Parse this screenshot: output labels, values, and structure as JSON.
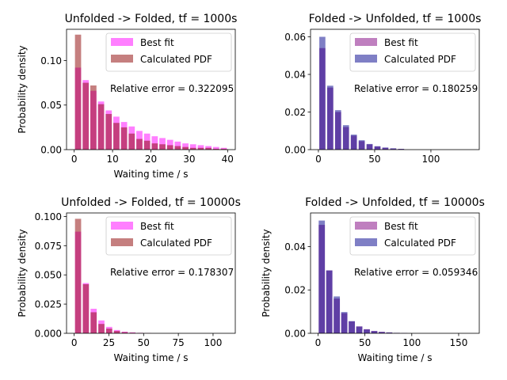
{
  "chart_data": [
    {
      "type": "bar",
      "title": "Unfolded -> Folded, tf = 1000s",
      "xlabel": "Waiting time / s",
      "ylabel": "Probability density",
      "xlim": [
        -2,
        42
      ],
      "ylim": [
        0,
        0.135
      ],
      "xticks": [
        0,
        10,
        20,
        30,
        40
      ],
      "xtick_labels": [
        "0",
        "10",
        "20",
        "30",
        "40"
      ],
      "yticks": [
        0,
        0.05,
        0.1
      ],
      "ytick_labels": [
        "0.00",
        "0.05",
        "0.10"
      ],
      "bar_width": 1.6,
      "annotation": "Relative error = 0.322095",
      "legend_position": "upper-right",
      "series": [
        {
          "name": "Best fit",
          "color": "#ff00ff",
          "alpha": 0.5,
          "x": [
            1,
            3,
            5,
            7,
            9,
            11,
            13,
            15,
            17,
            19,
            21,
            23,
            25,
            27,
            29,
            31,
            33,
            35,
            37,
            39
          ],
          "values": [
            0.092,
            0.078,
            0.066,
            0.054,
            0.044,
            0.037,
            0.031,
            0.026,
            0.021,
            0.018,
            0.015,
            0.013,
            0.011,
            0.009,
            0.007,
            0.006,
            0.005,
            0.004,
            0.003,
            0.002
          ]
        },
        {
          "name": "Calculated PDF",
          "color": "#8b0000",
          "alpha": 0.5,
          "x": [
            1,
            3,
            5,
            7,
            9,
            11,
            13,
            15,
            17,
            19,
            21,
            23,
            25,
            27,
            29,
            31,
            33,
            35,
            37,
            39
          ],
          "values": [
            0.129,
            0.075,
            0.072,
            0.051,
            0.04,
            0.03,
            0.025,
            0.018,
            0.012,
            0.01,
            0.007,
            0.006,
            0.005,
            0.004,
            0.003,
            0.002,
            0.002,
            0.002,
            0.001,
            0.001
          ]
        }
      ]
    },
    {
      "type": "bar",
      "title": "Folded -> Unfolded, tf = 1000s",
      "xlabel": "",
      "ylabel": "",
      "xlim": [
        -7,
        143
      ],
      "ylim": [
        0,
        0.064
      ],
      "xticks": [
        0,
        50,
        100
      ],
      "xtick_labels": [
        "0",
        "50",
        "100"
      ],
      "yticks": [
        0,
        0.02,
        0.04,
        0.06
      ],
      "ytick_labels": [
        "0.00",
        "0.02",
        "0.04",
        "0.06"
      ],
      "bar_width": 5.4,
      "annotation": "Relative error = 0.180259",
      "legend_position": "upper-right",
      "series": [
        {
          "name": "Best fit",
          "color": "#800080",
          "alpha": 0.5,
          "x": [
            3.5,
            10.5,
            17.5,
            24.5,
            31.5,
            38.5,
            45.5,
            52.5,
            59.5,
            66.5,
            73.5
          ],
          "values": [
            0.054,
            0.033,
            0.02,
            0.012,
            0.0074,
            0.0045,
            0.0028,
            0.0017,
            0.001,
            0.0006,
            0.0004
          ]
        },
        {
          "name": "Calculated PDF",
          "color": "#00008b",
          "alpha": 0.5,
          "x": [
            3.5,
            10.5,
            17.5,
            24.5,
            31.5,
            38.5,
            45.5,
            52.5,
            59.5,
            66.5,
            73.5
          ],
          "values": [
            0.06,
            0.034,
            0.021,
            0.013,
            0.008,
            0.005,
            0.003,
            0.0018,
            0.0011,
            0.0007,
            0.0004
          ]
        }
      ]
    },
    {
      "type": "bar",
      "title": "Unfolded -> Folded, tf = 10000s",
      "xlabel": "Waiting time / s",
      "ylabel": "Probability density",
      "xlim": [
        -5.5,
        116
      ],
      "ylim": [
        0,
        0.103
      ],
      "xticks": [
        0,
        25,
        50,
        75,
        100
      ],
      "xtick_labels": [
        "0",
        "25",
        "50",
        "75",
        "100"
      ],
      "yticks": [
        0,
        0.025,
        0.05,
        0.075,
        0.1
      ],
      "ytick_labels": [
        "0.000",
        "0.025",
        "0.050",
        "0.075",
        "0.100"
      ],
      "bar_width": 4.4,
      "annotation": "Relative error = 0.178307",
      "legend_position": "upper-right",
      "series": [
        {
          "name": "Best fit",
          "color": "#ff00ff",
          "alpha": 0.5,
          "x": [
            2.8,
            8.4,
            14,
            19.6,
            25.2,
            30.8,
            36.4,
            42,
            47.6,
            53.2
          ],
          "values": [
            0.087,
            0.043,
            0.021,
            0.011,
            0.0055,
            0.0028,
            0.0014,
            0.0008,
            0.0004,
            0.0002
          ]
        },
        {
          "name": "Calculated PDF",
          "color": "#8b0000",
          "alpha": 0.5,
          "x": [
            2.8,
            8.4,
            14,
            19.6,
            25.2,
            30.8,
            36.4,
            42,
            47.6,
            53.2
          ],
          "values": [
            0.098,
            0.042,
            0.018,
            0.008,
            0.004,
            0.002,
            0.001,
            0.0005,
            0.0003,
            0.0001
          ]
        }
      ]
    },
    {
      "type": "bar",
      "title": "Folded -> Unfolded, tf = 10000s",
      "xlabel": "Waiting time / s",
      "ylabel": "Probability density",
      "xlim": [
        -8,
        172
      ],
      "ylim": [
        0,
        0.0555
      ],
      "xticks": [
        0,
        50,
        100,
        150
      ],
      "xtick_labels": [
        "0",
        "50",
        "100",
        "150"
      ],
      "yticks": [
        0,
        0.02,
        0.04
      ],
      "ytick_labels": [
        "0.00",
        "0.02",
        "0.04"
      ],
      "bar_width": 6.6,
      "annotation": "Relative error = 0.059346",
      "legend_position": "upper-right",
      "series": [
        {
          "name": "Best fit",
          "color": "#800080",
          "alpha": 0.5,
          "x": [
            4,
            12,
            20,
            28,
            36,
            44,
            52,
            60,
            68,
            76,
            84,
            92
          ],
          "values": [
            0.05,
            0.029,
            0.016,
            0.0093,
            0.0055,
            0.0032,
            0.0019,
            0.0011,
            0.0007,
            0.0004,
            0.0002,
            0.0001
          ]
        },
        {
          "name": "Calculated PDF",
          "color": "#00008b",
          "alpha": 0.5,
          "x": [
            4,
            12,
            20,
            28,
            36,
            44,
            52,
            60,
            68,
            76,
            84,
            92
          ],
          "values": [
            0.052,
            0.029,
            0.017,
            0.0098,
            0.0056,
            0.0031,
            0.0018,
            0.001,
            0.0006,
            0.0004,
            0.0002,
            0.0001
          ]
        }
      ]
    }
  ]
}
